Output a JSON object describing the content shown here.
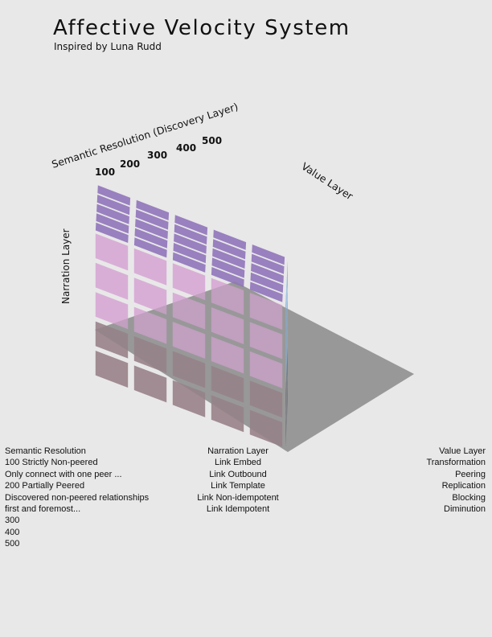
{
  "title": "Affective Velocity System",
  "subtitle": "Inspired by Luna Rudd",
  "axes": {
    "discovery": "Semantic Resolution (Discovery Layer)",
    "value": "Value Layer",
    "narration": "Narration Layer"
  },
  "ticks": [
    "100",
    "200",
    "300",
    "400",
    "500"
  ],
  "colors": {
    "background": "#e8e8e8",
    "top_face": "#9980bf",
    "left_face": "#d8aed6",
    "right_face": "#8fb9e0",
    "lower_left": "#a08c92",
    "lower_right": "#7c7f85",
    "plane": "#6e6e6e"
  },
  "legend": {
    "semantic": [
      "Semantic Resolution",
      "100 Strictly Non-peered",
      "Only connect with one peer ...",
      "200 Partially Peered",
      "Discovered non-peered relationships",
      "first and foremost...",
      "300",
      "400",
      "500"
    ],
    "narration": [
      "Narration Layer",
      "Link Embed",
      "Link Outbound",
      "Link Template",
      "Link Non-idempotent",
      "Link Idempotent"
    ],
    "value": [
      "Value Layer",
      "Transformation",
      "Peering",
      "Replication",
      "Blocking",
      "Diminution"
    ]
  }
}
